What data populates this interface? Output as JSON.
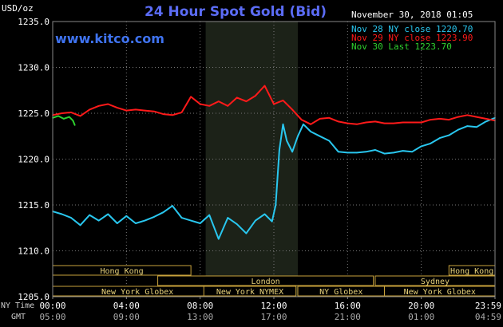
{
  "header": {
    "unit": "USD/oz",
    "title": "24 Hour Spot Gold (Bid)",
    "timestamp": "November 30, 2018 01:05",
    "website": "www.kitco.com"
  },
  "legend": [
    {
      "text": "Nov 28 NY close 1220.70",
      "color": "#29c7ef"
    },
    {
      "text": "Nov 29 NY close 1223.90",
      "color": "#ff1a1a"
    },
    {
      "text": "Nov 30 Last 1223.70",
      "color": "#2fd12f"
    }
  ],
  "time_rows": {
    "ny_label": "NY Time",
    "gmt_label": "GMT",
    "ny_ticks": [
      "00:00",
      "04:00",
      "08:00",
      "12:00",
      "16:00",
      "20:00",
      "23:59"
    ],
    "gmt_ticks": [
      "05:00",
      "09:00",
      "13:00",
      "17:00",
      "21:00",
      "01:00",
      "04:59"
    ]
  },
  "sessions": [
    {
      "label": "Hong Kong",
      "start": 0.0,
      "end": 7.5
    },
    {
      "label": "London",
      "start": 5.7,
      "end": 17.4
    },
    {
      "label": "New York Globex",
      "start": 0.0,
      "end": 9.2
    },
    {
      "label": "New York NYMEX",
      "start": 8.2,
      "end": 13.2
    },
    {
      "label": "NY Globex",
      "start": 13.3,
      "end": 18.0
    },
    {
      "label": "Hong Kong",
      "start": 21.5,
      "end": 24.0
    },
    {
      "label": "Sydney",
      "start": 17.5,
      "end": 24.0
    },
    {
      "label": "New York Globex",
      "start": 18.0,
      "end": 24.0
    }
  ],
  "chart_data": {
    "type": "line",
    "xlabel": "",
    "ylabel": "",
    "xlim": [
      0,
      24
    ],
    "ylim": [
      1205,
      1235
    ],
    "yticks": [
      "1205.0",
      "1210.0",
      "1215.0",
      "1220.0",
      "1225.0",
      "1230.0",
      "1235.0"
    ],
    "ytick_values": [
      1205,
      1210,
      1215,
      1220,
      1225,
      1230,
      1235
    ],
    "nymex_shade": [
      8.3,
      13.3
    ],
    "series": [
      {
        "name": "Nov 28 NY close 1220.70",
        "color": "#29c7ef",
        "x": [
          0,
          0.5,
          1,
          1.5,
          2,
          2.5,
          3,
          3.5,
          4,
          4.5,
          5,
          5.5,
          6,
          6.5,
          7,
          7.5,
          8,
          8.5,
          9,
          9.5,
          10,
          10.5,
          11,
          11.5,
          11.9,
          12.1,
          12.3,
          12.5,
          12.7,
          13,
          13.3,
          13.6,
          14,
          14.5,
          15,
          15.5,
          16,
          16.5,
          17,
          17.5,
          18,
          18.5,
          19,
          19.5,
          20,
          20.5,
          21,
          21.5,
          22,
          22.5,
          23,
          23.5,
          24
        ],
        "y": [
          1214.3,
          1214.0,
          1213.6,
          1212.8,
          1213.9,
          1213.3,
          1214.0,
          1213.0,
          1213.8,
          1213.0,
          1213.3,
          1213.7,
          1214.2,
          1214.9,
          1213.6,
          1213.3,
          1213.0,
          1213.9,
          1211.3,
          1213.6,
          1212.9,
          1211.9,
          1213.3,
          1214.0,
          1213.2,
          1215.0,
          1221.0,
          1223.8,
          1222.0,
          1220.8,
          1222.5,
          1223.8,
          1223.0,
          1222.5,
          1222.0,
          1220.8,
          1220.7,
          1220.7,
          1220.8,
          1221.0,
          1220.6,
          1220.7,
          1220.9,
          1220.8,
          1221.4,
          1221.7,
          1222.3,
          1222.6,
          1223.2,
          1223.6,
          1223.5,
          1224.1,
          1224.5
        ]
      },
      {
        "name": "Nov 29 NY close 1223.90",
        "color": "#ff1a1a",
        "x": [
          0,
          0.5,
          1,
          1.5,
          2,
          2.5,
          3,
          3.5,
          4,
          4.5,
          5,
          5.5,
          6,
          6.5,
          7,
          7.5,
          8,
          8.5,
          9,
          9.5,
          10,
          10.5,
          11,
          11.5,
          12,
          12.5,
          13,
          13.5,
          14,
          14.5,
          15,
          15.5,
          16,
          16.5,
          17,
          17.5,
          18,
          18.5,
          19,
          19.5,
          20,
          20.5,
          21,
          21.5,
          22,
          22.5,
          23,
          23.5,
          24
        ],
        "y": [
          1224.8,
          1225.0,
          1225.1,
          1224.7,
          1225.4,
          1225.8,
          1226.0,
          1225.6,
          1225.3,
          1225.4,
          1225.3,
          1225.2,
          1224.9,
          1224.8,
          1225.1,
          1226.8,
          1226.0,
          1225.8,
          1226.3,
          1225.8,
          1226.7,
          1226.3,
          1226.9,
          1228.0,
          1226.0,
          1226.4,
          1225.4,
          1224.3,
          1223.8,
          1224.4,
          1224.5,
          1224.1,
          1223.9,
          1223.8,
          1224.0,
          1224.1,
          1223.9,
          1223.9,
          1224.0,
          1224.0,
          1224.0,
          1224.3,
          1224.4,
          1224.3,
          1224.6,
          1224.8,
          1224.6,
          1224.4,
          1224.2
        ]
      },
      {
        "name": "Nov 30 Last 1223.70",
        "color": "#2fd12f",
        "x": [
          0,
          0.3,
          0.6,
          0.9,
          1.1,
          1.2
        ],
        "y": [
          1224.5,
          1224.7,
          1224.4,
          1224.6,
          1224.2,
          1223.7
        ]
      }
    ]
  }
}
